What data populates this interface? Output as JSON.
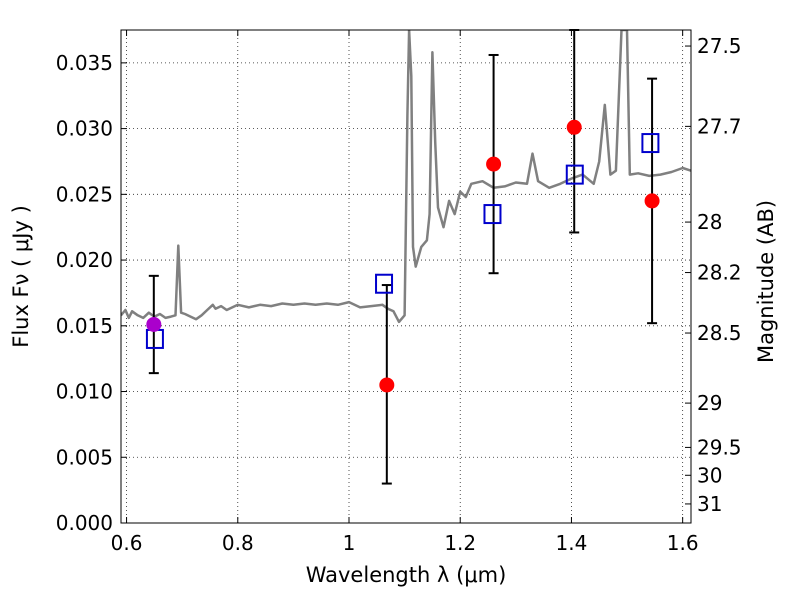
{
  "chart_data": {
    "type": "scatter",
    "xlabel": "Wavelength  λ (μm)",
    "ylabel": "Flux  Fν  ( μJy )",
    "ylabel_right": "Magnitude (AB)",
    "xlim": [
      0.59,
      1.615
    ],
    "ylim": [
      0.0,
      0.0375
    ],
    "grid": true,
    "x_ticks": [
      0.6,
      0.8,
      1.0,
      1.2,
      1.4,
      1.6
    ],
    "x_tick_labels": [
      "0.6",
      "0.8",
      "1",
      "1.2",
      "1.4",
      "1.6"
    ],
    "y_ticks": [
      0.0,
      0.005,
      0.01,
      0.015,
      0.02,
      0.025,
      0.03,
      0.035
    ],
    "y_tick_labels": [
      "0.000",
      "0.005",
      "0.010",
      "0.015",
      "0.020",
      "0.025",
      "0.030",
      "0.035"
    ],
    "right_ticks": [
      {
        "label": "27.5",
        "flux": 0.03628
      },
      {
        "label": "27.7",
        "flux": 0.03017
      },
      {
        "label": "28",
        "flux": 0.02289
      },
      {
        "label": "28.2",
        "flux": 0.01905
      },
      {
        "label": "28.5",
        "flux": 0.01445
      },
      {
        "label": "29",
        "flux": 0.00912
      },
      {
        "label": "29.5",
        "flux": 0.00575
      },
      {
        "label": "30",
        "flux": 0.00363
      },
      {
        "label": "31",
        "flux": 0.00145
      }
    ],
    "colors": {
      "spectrum": "#808080",
      "observed": "#ff0000",
      "highlight": "#aa00cc",
      "model": "#0000cc",
      "errorbar": "#000000"
    },
    "spectrum": {
      "x": [
        0.59,
        0.598,
        0.604,
        0.61,
        0.62,
        0.63,
        0.64,
        0.65,
        0.66,
        0.67,
        0.68,
        0.688,
        0.693,
        0.698,
        0.705,
        0.715,
        0.725,
        0.735,
        0.745,
        0.755,
        0.76,
        0.77,
        0.78,
        0.8,
        0.82,
        0.84,
        0.86,
        0.88,
        0.9,
        0.92,
        0.94,
        0.96,
        0.98,
        1.0,
        1.02,
        1.04,
        1.06,
        1.07,
        1.08,
        1.09,
        1.1,
        1.105,
        1.108,
        1.112,
        1.115,
        1.12,
        1.13,
        1.14,
        1.145,
        1.15,
        1.155,
        1.16,
        1.17,
        1.18,
        1.19,
        1.2,
        1.21,
        1.22,
        1.24,
        1.26,
        1.28,
        1.3,
        1.32,
        1.33,
        1.34,
        1.36,
        1.38,
        1.4,
        1.42,
        1.44,
        1.45,
        1.46,
        1.47,
        1.48,
        1.49,
        1.5,
        1.505,
        1.52,
        1.54,
        1.56,
        1.58,
        1.6,
        1.615
      ],
      "y": [
        0.0158,
        0.0162,
        0.0156,
        0.0161,
        0.0158,
        0.0156,
        0.016,
        0.0157,
        0.0159,
        0.0156,
        0.0157,
        0.0158,
        0.0211,
        0.016,
        0.0159,
        0.0157,
        0.0155,
        0.0158,
        0.0162,
        0.0166,
        0.0163,
        0.0165,
        0.0162,
        0.0166,
        0.0164,
        0.0166,
        0.0165,
        0.0167,
        0.0166,
        0.0167,
        0.0166,
        0.0167,
        0.0166,
        0.0168,
        0.0164,
        0.0165,
        0.0166,
        0.0163,
        0.0161,
        0.0153,
        0.0158,
        0.031,
        0.0375,
        0.034,
        0.021,
        0.0195,
        0.021,
        0.0215,
        0.0235,
        0.0358,
        0.029,
        0.024,
        0.0225,
        0.0245,
        0.0235,
        0.0252,
        0.0248,
        0.0258,
        0.026,
        0.0255,
        0.0256,
        0.0259,
        0.0258,
        0.0281,
        0.026,
        0.0255,
        0.0258,
        0.0262,
        0.0265,
        0.0258,
        0.0275,
        0.0318,
        0.0265,
        0.0268,
        0.0375,
        0.0375,
        0.0265,
        0.0266,
        0.0264,
        0.0265,
        0.0267,
        0.027,
        0.0268
      ]
    },
    "observed": [
      {
        "x": 0.649,
        "y": 0.0151,
        "err_low": 0.0114,
        "err_high": 0.0188,
        "color": "highlight"
      },
      {
        "x": 1.068,
        "y": 0.0105,
        "err_low": 0.003,
        "err_high": 0.0181,
        "color": "observed"
      },
      {
        "x": 1.26,
        "y": 0.0273,
        "err_low": 0.019,
        "err_high": 0.0356,
        "color": "observed"
      },
      {
        "x": 1.405,
        "y": 0.0301,
        "err_low": 0.0221,
        "err_high": 0.0375,
        "color": "observed"
      },
      {
        "x": 1.545,
        "y": 0.0245,
        "err_low": 0.0152,
        "err_high": 0.0338,
        "color": "observed"
      }
    ],
    "model": [
      {
        "x": 0.651,
        "y": 0.014
      },
      {
        "x": 1.063,
        "y": 0.0182
      },
      {
        "x": 1.258,
        "y": 0.0235
      },
      {
        "x": 1.406,
        "y": 0.0265
      },
      {
        "x": 1.542,
        "y": 0.0289
      }
    ]
  }
}
